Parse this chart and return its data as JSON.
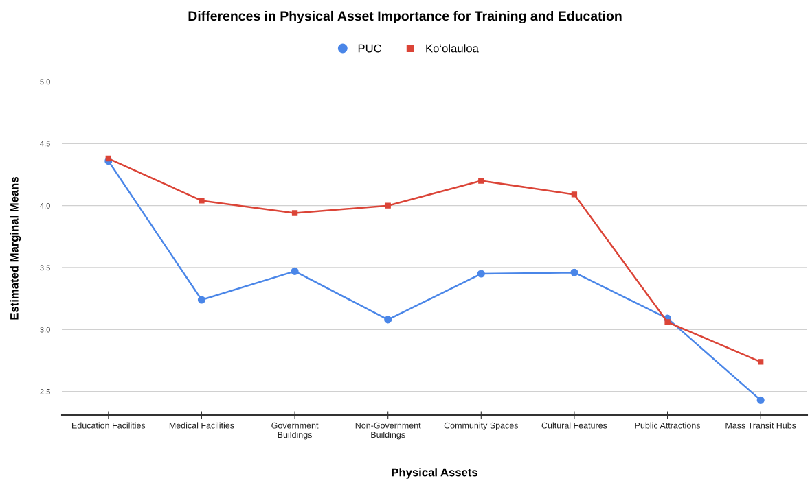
{
  "chart_data": {
    "type": "line",
    "title": "Differences in Physical Asset Importance for Training and Education",
    "xlabel": "Physical Assets",
    "ylabel": "Estimated Marginal Means",
    "categories": [
      "Education Facilities",
      "Medical Facilities",
      "Government\nBuildings",
      "Non-Government\nBuildings",
      "Community Spaces",
      "Cultural Features",
      "Public Attractions",
      "Mass Transit Hubs"
    ],
    "series": [
      {
        "name": "PUC",
        "color": "#4a86e8",
        "marker": "circle",
        "values": [
          4.36,
          3.24,
          3.47,
          3.08,
          3.45,
          3.46,
          3.09,
          2.43
        ]
      },
      {
        "name": "Ko‘olauloa",
        "color": "#db4437",
        "marker": "square",
        "values": [
          4.38,
          4.04,
          3.94,
          4.0,
          4.2,
          4.09,
          3.06,
          2.74
        ]
      }
    ],
    "ylim": [
      2.31,
      5.0
    ],
    "yticks": [
      {
        "value": 2.5,
        "label": "2.5"
      },
      {
        "value": 3.0,
        "label": "3.0"
      },
      {
        "value": 3.5,
        "label": "3.5"
      },
      {
        "value": 4.0,
        "label": "4.0"
      },
      {
        "value": 4.5,
        "label": "4.5"
      },
      {
        "value": 5.0,
        "label": "5.0"
      }
    ],
    "grid": "y",
    "legend": "top",
    "line_style": "solid"
  }
}
